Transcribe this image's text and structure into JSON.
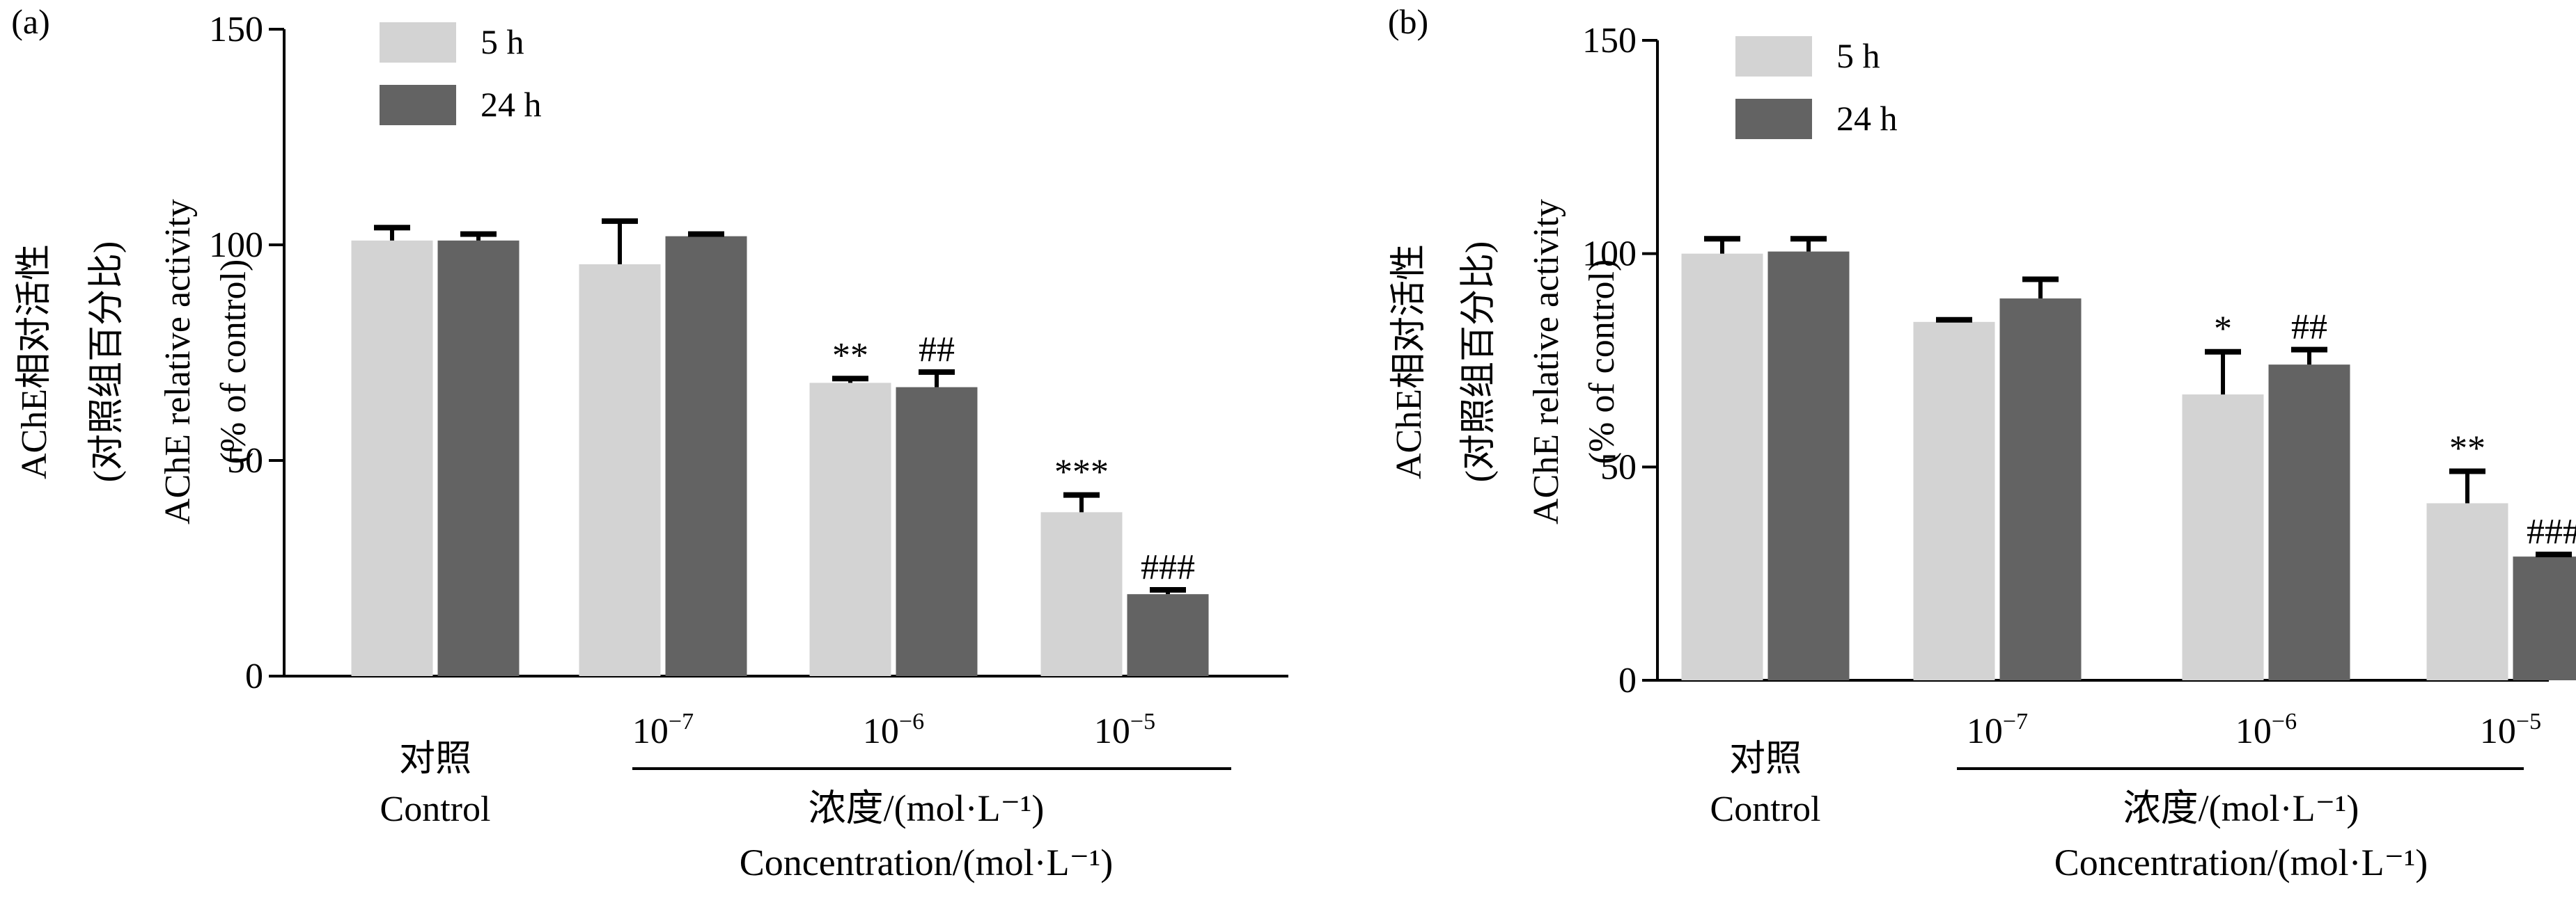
{
  "chart_data": [
    {
      "panel_label": "(a)",
      "type": "bar",
      "ylabel_lines": [
        "AChE相对活性",
        "(对照组百分比)",
        "AChE relative activity",
        "(% of control)"
      ],
      "ylim": [
        0,
        150
      ],
      "yticks": [
        "0",
        "50",
        "100",
        "150"
      ],
      "categories": [
        {
          "cn": "对照",
          "en": "Control"
        },
        {
          "base": "10",
          "exp": "−7"
        },
        {
          "base": "10",
          "exp": "−6"
        },
        {
          "base": "10",
          "exp": "−5"
        }
      ],
      "xlabel_lines": [
        "浓度/(mol·L⁻¹)",
        "Concentration/(mol·L⁻¹)"
      ],
      "legend_position": "top-left",
      "series": [
        {
          "name": "5 h",
          "color": "#d3d3d3",
          "values": [
            101,
            95.5,
            68,
            38
          ],
          "errors": [
            3,
            10,
            1,
            4
          ],
          "annotations": [
            "",
            "",
            "**",
            "***"
          ]
        },
        {
          "name": "24 h",
          "color": "#636363",
          "values": [
            101,
            102,
            67,
            19
          ],
          "errors": [
            1.5,
            0.5,
            3.5,
            1
          ],
          "annotations": [
            "",
            "",
            "##",
            "###"
          ]
        }
      ]
    },
    {
      "panel_label": "(b)",
      "type": "bar",
      "ylabel_lines": [
        "AChE相对活性",
        "(对照组百分比)",
        "AChE relative activity",
        "(% of control)"
      ],
      "ylim": [
        0,
        150
      ],
      "yticks": [
        "0",
        "50",
        "100",
        "150"
      ],
      "categories": [
        {
          "cn": "对照",
          "en": "Control"
        },
        {
          "base": "10",
          "exp": "−7"
        },
        {
          "base": "10",
          "exp": "−6"
        },
        {
          "base": "10",
          "exp": "−5"
        }
      ],
      "xlabel_lines": [
        "浓度/(mol·L⁻¹)",
        "Concentration/(mol·L⁻¹)"
      ],
      "legend_position": "top-left",
      "series": [
        {
          "name": "5 h",
          "color": "#d3d3d3",
          "values": [
            100,
            84,
            67,
            41.5
          ],
          "errors": [
            3.5,
            0.5,
            10,
            7.5
          ],
          "annotations": [
            "",
            "",
            "*",
            "**"
          ]
        },
        {
          "name": "24 h",
          "color": "#636363",
          "values": [
            100.5,
            89.5,
            74,
            29
          ],
          "errors": [
            3,
            4.5,
            3.5,
            0.5
          ],
          "annotations": [
            "",
            "",
            "##",
            "###"
          ]
        }
      ]
    }
  ]
}
